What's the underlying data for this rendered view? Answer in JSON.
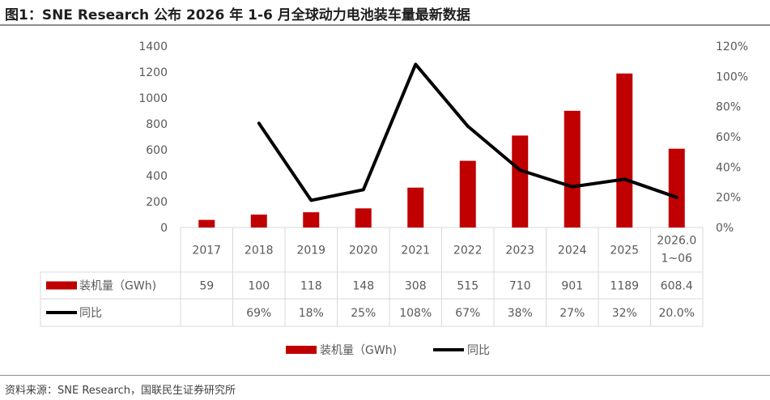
{
  "figure_title": "图1：SNE Research 公布 2026 年 1-6 月全球动力电池装车量最新数据",
  "source_note": "资料来源：SNE Research，国联民生证券研究所",
  "chart_data": {
    "type": "bar+line",
    "categories": [
      "2017",
      "2018",
      "2019",
      "2020",
      "2021",
      "2022",
      "2023",
      "2024",
      "2025",
      "2026.01~06"
    ],
    "category_lines": [
      [
        "2017"
      ],
      [
        "2018"
      ],
      [
        "2019"
      ],
      [
        "2020"
      ],
      [
        "2021"
      ],
      [
        "2022"
      ],
      [
        "2023"
      ],
      [
        "2024"
      ],
      [
        "2025"
      ],
      [
        "2026.0",
        "1~06"
      ]
    ],
    "series": [
      {
        "name": "装机量（GWh)",
        "type": "bar",
        "axis": "left",
        "color": "#C00000",
        "values": [
          59,
          100,
          118,
          148,
          308,
          515,
          710,
          901,
          1189,
          608.4
        ],
        "labels": [
          "59",
          "100",
          "118",
          "148",
          "308",
          "515",
          "710",
          "901",
          "1189",
          "608.4"
        ]
      },
      {
        "name": "同比",
        "type": "line",
        "axis": "right",
        "color": "#000000",
        "values": [
          null,
          0.69,
          0.18,
          0.25,
          1.08,
          0.67,
          0.38,
          0.27,
          0.32,
          0.2
        ],
        "labels": [
          "",
          "69%",
          "18%",
          "25%",
          "108%",
          "67%",
          "38%",
          "27%",
          "32%",
          "20.0%"
        ]
      }
    ],
    "y_left": {
      "ylim": [
        0,
        1400
      ],
      "ticks": [
        "0",
        "200",
        "400",
        "600",
        "800",
        "1000",
        "1200",
        "1400"
      ]
    },
    "y_right": {
      "ylim": [
        0,
        1.2
      ],
      "ticks": [
        "0%",
        "20%",
        "40%",
        "60%",
        "80%",
        "100%",
        "120%"
      ]
    },
    "grid": false,
    "legend": "bottom",
    "data_table": true
  }
}
